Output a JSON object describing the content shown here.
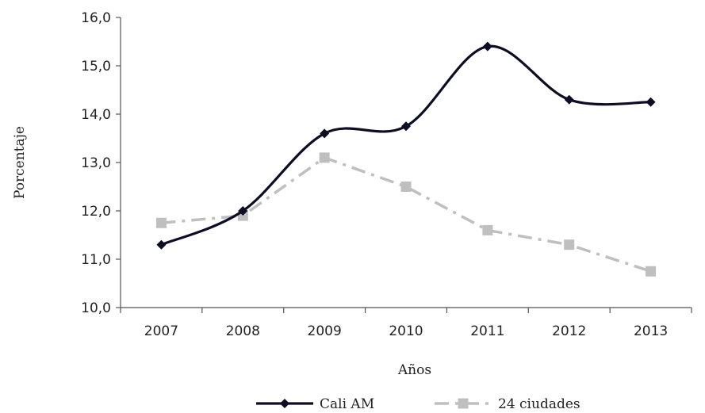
{
  "chart_data": {
    "type": "line",
    "categories": [
      "2007",
      "2008",
      "2009",
      "2010",
      "2011",
      "2012",
      "2013"
    ],
    "series": [
      {
        "name": "Cali AM",
        "values": [
          11.3,
          12.0,
          13.6,
          13.75,
          15.4,
          14.3,
          14.25
        ],
        "color": "#0d0d26",
        "marker": "diamond",
        "line": "solid-smooth"
      },
      {
        "name": "24 ciudades",
        "values": [
          11.75,
          11.9,
          13.1,
          12.5,
          11.6,
          11.3,
          10.75
        ],
        "color": "#bfbfbf",
        "marker": "square",
        "line": "dash-dot"
      }
    ],
    "ylim": [
      10.0,
      16.0
    ],
    "yticks": [
      "10,0",
      "11,0",
      "12,0",
      "13,0",
      "14,0",
      "15,0",
      "16,0"
    ],
    "xlabel": "Años",
    "ylabel": "Porcentaje",
    "grid": false,
    "legend_position": "bottom"
  }
}
